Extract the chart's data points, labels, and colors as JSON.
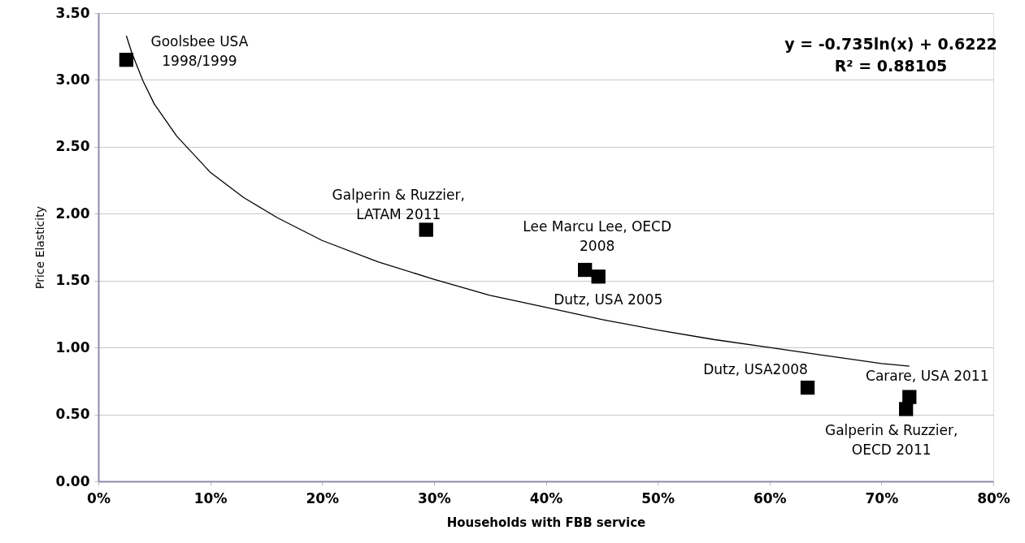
{
  "chart_data": {
    "type": "scatter",
    "xlabel": "Households with FBB service",
    "ylabel": "Price Elasticity",
    "xlim": [
      0,
      0.8
    ],
    "ylim": [
      0,
      3.5
    ],
    "grid": "y",
    "xticks": [
      {
        "value": 0,
        "label": "0%"
      },
      {
        "value": 0.1,
        "label": "10%"
      },
      {
        "value": 0.2,
        "label": "20%"
      },
      {
        "value": 0.3,
        "label": "30%"
      },
      {
        "value": 0.4,
        "label": "40%"
      },
      {
        "value": 0.5,
        "label": "50%"
      },
      {
        "value": 0.6,
        "label": "60%"
      },
      {
        "value": 0.7,
        "label": "70%"
      },
      {
        "value": 0.8,
        "label": "80%"
      }
    ],
    "yticks": [
      {
        "value": 0,
        "label": "0.00"
      },
      {
        "value": 0.5,
        "label": "0.50"
      },
      {
        "value": 1,
        "label": "1.00"
      },
      {
        "value": 1.5,
        "label": "1.50"
      },
      {
        "value": 2,
        "label": "2.00"
      },
      {
        "value": 2.5,
        "label": "2.50"
      },
      {
        "value": 3,
        "label": "3.00"
      },
      {
        "value": 3.5,
        "label": "3.50"
      }
    ],
    "series": [
      {
        "type": "scatter",
        "marker": "square",
        "color": "#000000",
        "x": [
          0.025,
          0.293,
          0.435,
          0.447,
          0.634,
          0.725,
          0.722
        ],
        "values": [
          3.15,
          1.88,
          1.58,
          1.53,
          0.7,
          0.63,
          0.54
        ]
      },
      {
        "type": "line",
        "marker": "none",
        "line_style": "solid",
        "color": "#000000",
        "x": [
          0.025,
          0.03,
          0.04,
          0.05,
          0.07,
          0.1,
          0.13,
          0.16,
          0.2,
          0.25,
          0.3,
          0.35,
          0.4,
          0.45,
          0.5,
          0.55,
          0.6,
          0.65,
          0.7,
          0.725
        ],
        "values": [
          3.33,
          3.2,
          2.99,
          2.82,
          2.58,
          2.31,
          2.12,
          1.97,
          1.8,
          1.64,
          1.51,
          1.39,
          1.3,
          1.21,
          1.13,
          1.06,
          1.0,
          0.94,
          0.88,
          0.86
        ]
      }
    ],
    "annotations": [
      {
        "text": "Goolsbee USA\n1998/1999",
        "x": 0.025,
        "y": 3.15
      },
      {
        "text": "Galperin & Ruzzier,\nLATAM 2011",
        "x": 0.293,
        "y": 1.88
      },
      {
        "text": "Lee Marcu Lee, OECD\n2008",
        "x": 0.435,
        "y": 1.58
      },
      {
        "text": "Dutz, USA 2005",
        "x": 0.447,
        "y": 1.53
      },
      {
        "text": "Dutz, USA2008",
        "x": 0.634,
        "y": 0.7
      },
      {
        "text": "Carare, USA 2011",
        "x": 0.725,
        "y": 0.63
      },
      {
        "text": "Galperin & Ruzzier,\nOECD 2011",
        "x": 0.722,
        "y": 0.54
      },
      "y = -0.735ln(x) + 0.6222",
      "R² = 0.88105"
    ]
  }
}
